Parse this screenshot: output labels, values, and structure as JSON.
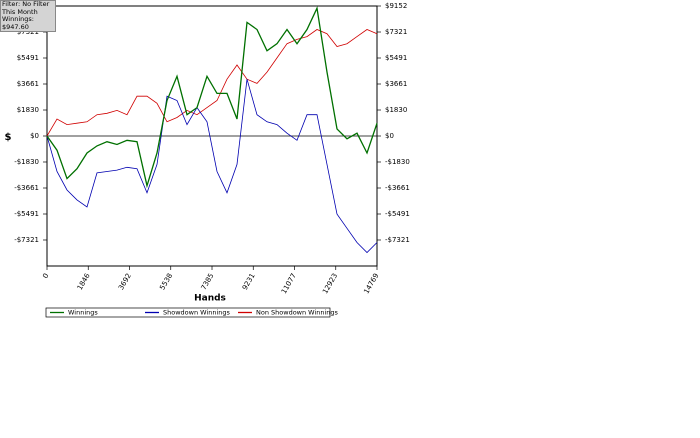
{
  "chart_data": {
    "type": "line",
    "info": {
      "filter": "Filter: No Filter",
      "period": "This Month",
      "winnings": "Winnings: $947.60"
    },
    "xlabel": "Hands",
    "ylabel": "$",
    "x": [
      0,
      448,
      895,
      1343,
      1790,
      2238,
      2685,
      3133,
      3580,
      4028,
      4475,
      4923,
      5370,
      5818,
      6265,
      6713,
      7160,
      7608,
      8055,
      8503,
      8950,
      9398,
      9845,
      10293,
      10740,
      11188,
      11635,
      12083,
      12530,
      12978,
      13425,
      13873,
      14320,
      14768
    ],
    "series": [
      {
        "name": "Winnings",
        "color": "#007000",
        "values": [
          0,
          -1000,
          -3000,
          -2300,
          -1200,
          -700,
          -400,
          -600,
          -300,
          -400,
          -3500,
          -1200,
          2500,
          4200,
          1500,
          2000,
          4200,
          3000,
          3000,
          1200,
          8000,
          7500,
          6000,
          6500,
          7500,
          6500,
          7500,
          9000,
          4500,
          500,
          -200,
          200,
          -1200,
          900
        ]
      },
      {
        "name": "Showdown Winnings",
        "color": "#0000b0",
        "values": [
          0,
          -2500,
          -3800,
          -4500,
          -5000,
          -2600,
          -2500,
          -2400,
          -2200,
          -2300,
          -4000,
          -2000,
          2800,
          2500,
          800,
          2000,
          1000,
          -2500,
          -4000,
          -2000,
          4000,
          1500,
          1000,
          800,
          200,
          -300,
          1500,
          1500,
          -2000,
          -5500,
          -6500,
          -7500,
          -8200,
          -7500
        ]
      },
      {
        "name": "Non Showdown Winnings",
        "color": "#d00000",
        "values": [
          0,
          1200,
          800,
          900,
          1000,
          1500,
          1600,
          1800,
          1500,
          2800,
          2800,
          2300,
          1000,
          1300,
          1800,
          1500,
          2000,
          2500,
          4000,
          5000,
          4000,
          3700,
          4500,
          5500,
          6500,
          6800,
          7000,
          7500,
          7200,
          6300,
          6500,
          7000,
          7500,
          7200
        ]
      }
    ],
    "xlim": [
      0,
      14769
    ],
    "xticks": [
      0,
      1846,
      3692,
      5538,
      7385,
      9231,
      11077,
      12923,
      14769
    ],
    "ylim": [
      -9152,
      9152
    ],
    "yticks": [
      {
        "value": 9152,
        "label": "$9152"
      },
      {
        "value": 7321,
        "label": "$7321"
      },
      {
        "value": 5491,
        "label": "$5491"
      },
      {
        "value": 3661,
        "label": "$3661"
      },
      {
        "value": 1830,
        "label": "$1830"
      },
      {
        "value": 0,
        "label": "$0"
      },
      {
        "value": -1830,
        "label": "-$1830"
      },
      {
        "value": -3661,
        "label": "-$3661"
      },
      {
        "value": -5491,
        "label": "-$5491"
      },
      {
        "value": -7321,
        "label": "-$7321"
      }
    ]
  }
}
